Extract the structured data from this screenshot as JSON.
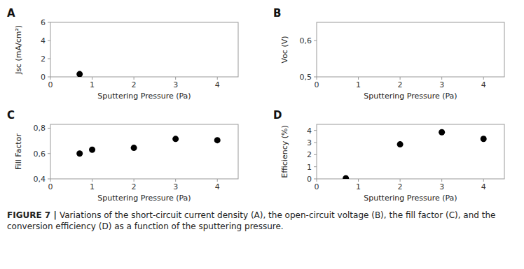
{
  "chart_data": [
    {
      "type": "scatter",
      "title": "A",
      "color": "black",
      "x": [
        0.7
      ],
      "values": [
        0.3
      ],
      "x_label": "Sputtering Pressure (Pa)",
      "y_label": "Jsc (mA/cm²)",
      "xlim": [
        0,
        4.5
      ],
      "ylim": [
        0,
        6
      ],
      "xticks": [
        0,
        1,
        2,
        3,
        4
      ],
      "yticks": [
        0,
        2,
        4,
        6
      ]
    },
    {
      "type": "scatter",
      "title": "B",
      "color": "black",
      "x": [],
      "values": [],
      "x_label": "Sputtering Pressure (Pa)",
      "y_label": "Voc (V)",
      "xlim": [
        0,
        4.5
      ],
      "ylim": [
        0.5,
        0.65
      ],
      "xticks": [
        0,
        1,
        2,
        3,
        4
      ],
      "yticks": [
        {
          "value": 0.5,
          "label": "0,5"
        },
        {
          "value": 0.6,
          "label": "0,6"
        }
      ]
    },
    {
      "type": "scatter",
      "title": "C",
      "color": "black",
      "x": [
        0.7,
        1.0,
        2.0,
        3.0,
        4.0
      ],
      "values": [
        0.6,
        0.63,
        0.645,
        0.715,
        0.705
      ],
      "x_label": "Sputtering Pressure (Pa)",
      "y_label": "Fill Factor",
      "xlim": [
        0,
        4.5
      ],
      "ylim": [
        0.4,
        0.83
      ],
      "xticks": [
        0,
        1,
        2,
        3,
        4
      ],
      "yticks": [
        {
          "value": 0.4,
          "label": "0,4"
        },
        {
          "value": 0.6,
          "label": "0,6"
        },
        {
          "value": 0.8,
          "label": "0,8"
        }
      ]
    },
    {
      "type": "scatter",
      "title": "D",
      "color": "black",
      "x": [
        0.7,
        2.0,
        3.0,
        4.0
      ],
      "values": [
        0.05,
        2.85,
        3.85,
        3.3
      ],
      "x_label": "Sputtering Pressure (Pa)",
      "y_label": "Efficiency (%)",
      "xlim": [
        0,
        4.5
      ],
      "ylim": [
        0,
        4.5
      ],
      "xticks": [
        0,
        1,
        2,
        3,
        4
      ],
      "yticks": [
        0,
        1,
        2,
        3,
        4
      ]
    }
  ],
  "caption": [
    "FIGURE 7 |",
    "Variations of the short-circuit current density (A), the open-circuit voltage (B), the fill factor (C), and the conversion efficiency (D) as a function of the sputtering pressure."
  ]
}
